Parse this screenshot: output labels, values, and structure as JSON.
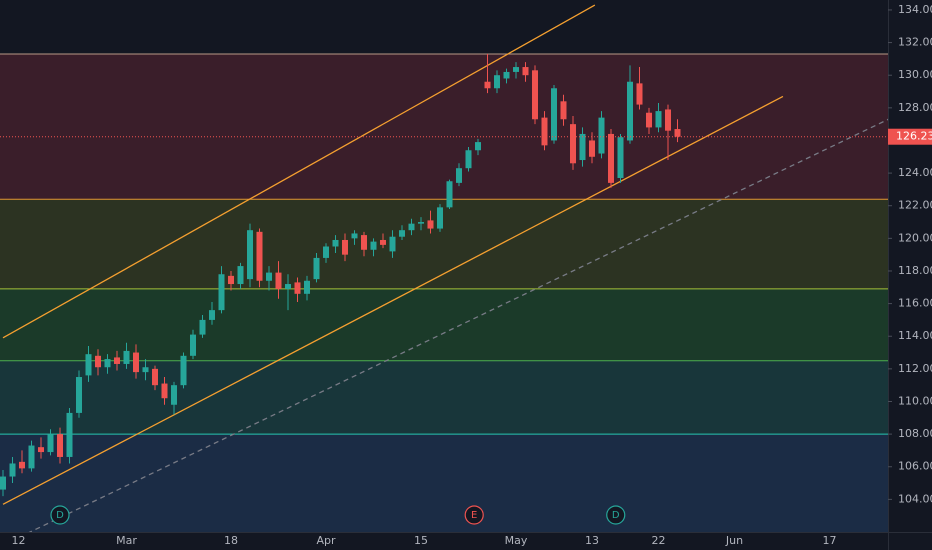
{
  "chart_data": {
    "type": "candlestick",
    "categories": [
      null,
      "12",
      null,
      null,
      null,
      null,
      null,
      null,
      null,
      null,
      null,
      null,
      null,
      "Mar",
      null,
      null,
      null,
      null,
      null,
      null,
      null,
      null,
      null,
      null,
      "18",
      null,
      null,
      null,
      null,
      null,
      null,
      null,
      null,
      null,
      "Apr",
      null,
      null,
      null,
      null,
      null,
      null,
      null,
      null,
      null,
      "15",
      null,
      null,
      null,
      null,
      null,
      null,
      null,
      null,
      null,
      "May",
      null,
      null,
      null,
      null,
      null,
      null,
      null,
      "13",
      null,
      null,
      null,
      null,
      null,
      null,
      "22",
      null,
      null,
      null,
      null,
      null,
      null,
      null,
      "Jun",
      null,
      null,
      null,
      null,
      null,
      null,
      null,
      null,
      null,
      "17",
      null,
      null,
      null,
      null,
      null
    ],
    "open": [
      104.6,
      105.4,
      106.3,
      105.9,
      107.2,
      106.9,
      108,
      106.6,
      109.3,
      111.6,
      112.8,
      112.1,
      112.7,
      112.3,
      113,
      111.8,
      112,
      111.1,
      109.8,
      111,
      112.8,
      114.1,
      115,
      115.6,
      117.7,
      117.2,
      117.5,
      120.4,
      117.4,
      117.9,
      116.9,
      117.3,
      116.6,
      117.5,
      118.8,
      119.5,
      119.9,
      120,
      120.2,
      119.3,
      119.9,
      119.2,
      120.1,
      120.5,
      120.9,
      121.1,
      120.6,
      121.9,
      123.4,
      124.3,
      125.4,
      129.6,
      129.2,
      129.8,
      130.2,
      130.5,
      130.3,
      127.4,
      126,
      128.4,
      127,
      124.8,
      126,
      125.2,
      126.4,
      123.7,
      126,
      129.5,
      127.7,
      126.8,
      127.9,
      126.7,
      null,
      null,
      null,
      null,
      null,
      null,
      null,
      null,
      null,
      null,
      null,
      null,
      null,
      null,
      null,
      null,
      null,
      null,
      null,
      null,
      null
    ],
    "high": [
      105.8,
      106.6,
      107,
      107.6,
      107.8,
      108.3,
      108.4,
      109.6,
      111.9,
      113.4,
      113.2,
      112.9,
      113.1,
      113.6,
      113.5,
      112.6,
      112.2,
      111.5,
      111.2,
      113,
      114.4,
      115.3,
      116.1,
      118.3,
      118,
      118.5,
      120.9,
      120.6,
      118.3,
      118.6,
      117.8,
      117.6,
      117.7,
      119.1,
      119.7,
      120.2,
      120.3,
      120.5,
      120.4,
      120,
      120.3,
      120.5,
      120.8,
      121.2,
      121.3,
      121.7,
      122.1,
      123.6,
      124.6,
      125.6,
      126.1,
      131.3,
      130.3,
      130.4,
      130.8,
      130.8,
      130.6,
      127.8,
      129.4,
      128.8,
      127.5,
      126.8,
      126.5,
      127.8,
      126.7,
      126.4,
      130.6,
      130.5,
      128,
      128.3,
      128.2,
      127.3,
      null,
      null,
      null,
      null,
      null,
      null,
      null,
      null,
      null,
      null,
      null,
      null,
      null,
      null,
      null,
      null,
      null,
      null,
      null,
      null,
      null
    ],
    "low": [
      104.2,
      105,
      105.6,
      105.7,
      106.5,
      106.7,
      106.2,
      106.2,
      109,
      111.2,
      111.6,
      111.7,
      111.9,
      112,
      111.4,
      111.3,
      110.7,
      109.8,
      109.2,
      110.8,
      112.6,
      113.9,
      114.7,
      115.4,
      116.8,
      116.9,
      117,
      117,
      116.8,
      116.3,
      115.6,
      116.1,
      116.2,
      117.3,
      118.5,
      119.1,
      118.6,
      119.6,
      118.9,
      118.9,
      119.4,
      118.8,
      119.9,
      120.2,
      120.5,
      120.3,
      120.4,
      121.8,
      123.2,
      124.1,
      125.1,
      128.9,
      128.9,
      129.5,
      129.8,
      129.6,
      127,
      125.4,
      125.8,
      126.9,
      124.2,
      124.4,
      124.6,
      124.9,
      123.1,
      123.4,
      125.8,
      127.9,
      126.4,
      126.5,
      124.8,
      125.9,
      null,
      null,
      null,
      null,
      null,
      null,
      null,
      null,
      null,
      null,
      null,
      null,
      null,
      null,
      null,
      null,
      null,
      null,
      null,
      null,
      null
    ],
    "close": [
      105.4,
      106.2,
      105.9,
      107.3,
      106.9,
      108,
      106.6,
      109.3,
      111.5,
      112.9,
      112.1,
      112.6,
      112.3,
      113.1,
      111.8,
      112.1,
      111,
      110.2,
      111,
      112.8,
      114.1,
      115,
      115.6,
      117.8,
      117.2,
      118.3,
      120.5,
      117.4,
      117.9,
      116.9,
      117.2,
      116.6,
      117.4,
      118.8,
      119.5,
      119.9,
      119,
      120.3,
      119.3,
      119.8,
      119.6,
      120.1,
      120.5,
      120.9,
      121,
      120.6,
      121.9,
      123.5,
      124.3,
      125.4,
      125.9,
      129.2,
      130,
      130.2,
      130.5,
      130,
      127.3,
      125.7,
      129.2,
      127.3,
      124.6,
      126.4,
      125,
      127.4,
      123.4,
      126.2,
      129.6,
      128.2,
      126.8,
      127.8,
      126.6,
      126.23,
      null,
      null,
      null,
      null,
      null,
      null,
      null,
      null,
      null,
      null,
      null,
      null,
      null,
      null,
      null,
      null,
      null,
      null,
      null,
      null,
      null
    ],
    "up_color": "#26a69a",
    "down_color": "#ef5350",
    "ylim": [
      102,
      134.61
    ],
    "yticks": [
      {
        "value": 104,
        "label": "104.00"
      },
      {
        "value": 106,
        "label": "106.00"
      },
      {
        "value": 108,
        "label": "108.00"
      },
      {
        "value": 110,
        "label": "110.00"
      },
      {
        "value": 112,
        "label": "112.00"
      },
      {
        "value": 114,
        "label": "114.00"
      },
      {
        "value": 116,
        "label": "116.00"
      },
      {
        "value": 118,
        "label": "118.00"
      },
      {
        "value": 120,
        "label": "120.00"
      },
      {
        "value": 122,
        "label": "122.00"
      },
      {
        "value": 124,
        "label": "124.00"
      },
      {
        "value": 128,
        "label": "128.00"
      },
      {
        "value": 130,
        "label": "130.00"
      },
      {
        "value": 132,
        "label": "132.00"
      },
      {
        "value": 134,
        "label": "134.00"
      }
    ],
    "last_price": 126.23,
    "bands": [
      {
        "from": 131.3,
        "to": 122.4,
        "color": "#3a1e2a",
        "line_color": "#b89a86"
      },
      {
        "from": 122.4,
        "to": 116.9,
        "color": "#2c3322",
        "line_color": "#e39833"
      },
      {
        "from": 116.9,
        "to": 112.5,
        "color": "#1b3a29",
        "line_color": "#a5c23a"
      },
      {
        "from": 112.5,
        "to": 108,
        "color": "#18363a",
        "line_color": "#4caf50"
      },
      {
        "from": 108,
        "to": 102,
        "color": "#1b2c45",
        "line_color": "#26c6b0"
      }
    ],
    "trend_lines": [
      {
        "from": [
          0,
          113.9
        ],
        "to": [
          62.3,
          134.3
        ],
        "color": "#f5a030",
        "dashed": false
      },
      {
        "from": [
          0,
          103.7
        ],
        "to": [
          82.1,
          128.7
        ],
        "color": "#f5a030",
        "dashed": false
      },
      {
        "from": [
          0,
          101.2
        ],
        "to": [
          93.2,
          127.3
        ],
        "color": "#787b86",
        "dashed": true
      }
    ],
    "events": [
      {
        "label": "D",
        "x": 6,
        "color": "#26a69a"
      },
      {
        "label": "E",
        "x": 49.6,
        "color": "#ef5350"
      },
      {
        "label": "D",
        "x": 64.5,
        "color": "#26a69a"
      }
    ]
  }
}
